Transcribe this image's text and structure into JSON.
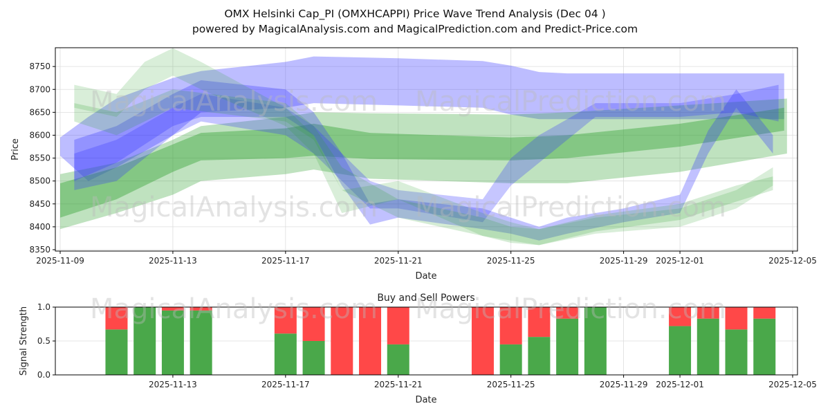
{
  "title_line1": "OMX Helsinki Cap_PI (OMXHCAPPI) Price Wave Trend Analysis (Dec 04 )",
  "title_line2": "powered by MagicalAnalysis.com and MagicalPrediction.com and Predict-Price.com",
  "watermarks": [
    "MagicalAnalysis.com",
    "MagicalPrediction.com"
  ],
  "colors": {
    "blue": "#3333ff",
    "green": "#2ca02c",
    "buy": "#4aa84a",
    "sell": "#ff4848"
  },
  "chart_data": [
    {
      "type": "area",
      "title": "",
      "xlabel": "Date",
      "ylabel": "Price",
      "ylim": [
        8347,
        8791
      ],
      "xlim_days_from_2025_11_09": [
        -0.2,
        26.2
      ],
      "yticks": [
        "8350",
        "8400",
        "8450",
        "8500",
        "8550",
        "8600",
        "8650",
        "8700",
        "8750"
      ],
      "ytick_values": [
        8350,
        8400,
        8450,
        8500,
        8550,
        8600,
        8650,
        8700,
        8750
      ],
      "xticks": [
        "2025-11-09",
        "2025-11-13",
        "2025-11-17",
        "2025-11-21",
        "2025-11-25",
        "2025-11-29",
        "2025-12-01",
        "2025-12-05"
      ],
      "xtick_days": [
        0,
        4,
        8,
        12,
        16,
        20,
        22,
        26
      ],
      "bands": [
        {
          "color": "blue",
          "opacity": 0.32,
          "pts": [
            [
              0,
              8595,
              8555
            ],
            [
              1,
              8640,
              8500
            ],
            [
              2,
              8680,
              8530
            ],
            [
              4,
              8725,
              8600
            ],
            [
              5,
              8740,
              8650
            ],
            [
              8,
              8760,
              8660
            ],
            [
              9,
              8772,
              8670
            ],
            [
              12,
              8768,
              8665
            ],
            [
              15,
              8762,
              8660
            ],
            [
              16,
              8752,
              8645
            ],
            [
              17,
              8738,
              8635
            ],
            [
              18,
              8735,
              8635
            ],
            [
              25.7,
              8735,
              8635
            ]
          ]
        },
        {
          "color": "green",
          "opacity": 0.3,
          "pts": [
            [
              0,
              8515,
              8395
            ],
            [
              2,
              8540,
              8430
            ],
            [
              4,
              8590,
              8470
            ],
            [
              5,
              8620,
              8500
            ],
            [
              8,
              8640,
              8515
            ],
            [
              9,
              8650,
              8525
            ],
            [
              11,
              8648,
              8505
            ],
            [
              16,
              8645,
              8495
            ],
            [
              18,
              8650,
              8495
            ],
            [
              22,
              8665,
              8520
            ],
            [
              25.8,
              8680,
              8560
            ]
          ]
        },
        {
          "color": "green",
          "opacity": 0.4,
          "pts": [
            [
              0,
              8495,
              8420
            ],
            [
              2,
              8530,
              8460
            ],
            [
              4,
              8580,
              8520
            ],
            [
              5,
              8605,
              8545
            ],
            [
              8,
              8615,
              8550
            ],
            [
              9,
              8625,
              8555
            ],
            [
              11,
              8605,
              8548
            ],
            [
              16,
              8595,
              8545
            ],
            [
              18,
              8600,
              8550
            ],
            [
              22,
              8625,
              8575
            ],
            [
              25.7,
              8660,
              8610
            ]
          ]
        },
        {
          "color": "blue",
          "opacity": 0.3,
          "pts": [
            [
              0.5,
              8590,
              8500
            ],
            [
              2,
              8620,
              8540
            ],
            [
              4,
              8690,
              8620
            ],
            [
              5,
              8720,
              8640
            ],
            [
              8,
              8700,
              8640
            ],
            [
              9,
              8650,
              8600
            ],
            [
              10,
              8560,
              8490
            ],
            [
              11,
              8450,
              8405
            ],
            [
              12,
              8460,
              8420
            ],
            [
              15,
              8440,
              8395
            ],
            [
              16,
              8420,
              8385
            ],
            [
              17,
              8400,
              8370
            ],
            [
              18,
              8420,
              8385
            ],
            [
              20,
              8440,
              8410
            ],
            [
              22,
              8470,
              8430
            ],
            [
              23,
              8610,
              8560
            ],
            [
              24,
              8700,
              8660
            ],
            [
              25.3,
              8600,
              8560
            ]
          ]
        },
        {
          "color": "blue",
          "opacity": 0.28,
          "pts": [
            [
              0.5,
              8560,
              8480
            ],
            [
              2,
              8590,
              8500
            ],
            [
              4,
              8660,
              8600
            ],
            [
              5,
              8690,
              8630
            ],
            [
              8,
              8660,
              8600
            ],
            [
              9,
              8620,
              8560
            ],
            [
              11,
              8500,
              8440
            ],
            [
              12,
              8480,
              8440
            ],
            [
              15,
              8460,
              8410
            ],
            [
              16,
              8550,
              8490
            ],
            [
              17,
              8600,
              8540
            ],
            [
              19,
              8670,
              8640
            ],
            [
              22,
              8670,
              8640
            ],
            [
              24,
              8690,
              8650
            ],
            [
              25.5,
              8710,
              8630
            ]
          ]
        },
        {
          "color": "green",
          "opacity": 0.18,
          "pts": [
            [
              0.5,
              8710,
              8660
            ],
            [
              2,
              8690,
              8640
            ],
            [
              3,
              8760,
              8700
            ],
            [
              4,
              8790,
              8730
            ],
            [
              5,
              8760,
              8700
            ],
            [
              8,
              8660,
              8620
            ],
            [
              9,
              8600,
              8560
            ],
            [
              10,
              8480,
              8430
            ],
            [
              12,
              8500,
              8460
            ],
            [
              15,
              8430,
              8380
            ],
            [
              16,
              8410,
              8370
            ],
            [
              17,
              8395,
              8360
            ],
            [
              19,
              8420,
              8385
            ],
            [
              22,
              8440,
              8400
            ],
            [
              24,
              8480,
              8440
            ],
            [
              25.3,
              8530,
              8490
            ]
          ]
        },
        {
          "color": "green",
          "opacity": 0.2,
          "pts": [
            [
              0.5,
              8670,
              8630
            ],
            [
              2,
              8650,
              8600
            ],
            [
              4,
              8700,
              8660
            ],
            [
              8,
              8670,
              8630
            ],
            [
              9,
              8620,
              8590
            ],
            [
              10,
              8530,
              8480
            ],
            [
              12,
              8460,
              8420
            ],
            [
              15,
              8420,
              8380
            ],
            [
              16,
              8400,
              8365
            ],
            [
              17,
              8395,
              8360
            ],
            [
              19,
              8425,
              8390
            ],
            [
              22,
              8450,
              8415
            ],
            [
              24,
              8490,
              8455
            ],
            [
              25.3,
              8510,
              8480
            ]
          ]
        }
      ]
    },
    {
      "type": "bar",
      "title": "Buy and Sell Powers",
      "xlabel": "Date",
      "ylabel": "Signal Strength",
      "ylim": [
        0,
        1
      ],
      "yticks": [
        "0.0",
        "0.5",
        "1.0"
      ],
      "ytick_values": [
        0,
        0.5,
        1
      ],
      "xticks": [
        "2025-11-13",
        "2025-11-17",
        "2025-11-21",
        "2025-11-25",
        "2025-11-29",
        "2025-12-01",
        "2025-12-05"
      ],
      "xtick_days": [
        4,
        8,
        12,
        16,
        20,
        22,
        26
      ],
      "categories": [
        "2025-11-11",
        "2025-11-12",
        "2025-11-13",
        "2025-11-14",
        "2025-11-17",
        "2025-11-18",
        "2025-11-19",
        "2025-11-20",
        "2025-11-21",
        "2025-11-24",
        "2025-11-25",
        "2025-11-26",
        "2025-11-27",
        "2025-11-28",
        "2025-12-01",
        "2025-12-02",
        "2025-12-03",
        "2025-12-04"
      ],
      "days": [
        2,
        3,
        4,
        5,
        8,
        9,
        10,
        11,
        12,
        15,
        16,
        17,
        18,
        19,
        22,
        23,
        24,
        25
      ],
      "series": [
        {
          "name": "Buy",
          "values": [
            0.67,
            1.0,
            0.95,
            0.95,
            0.61,
            0.5,
            0,
            0,
            0.45,
            0,
            0.45,
            0.56,
            0.83,
            1.0,
            0.72,
            0.83,
            0.67,
            0.83
          ]
        },
        {
          "name": "Sell",
          "values": [
            0.33,
            0,
            0.05,
            0.05,
            0.39,
            0.5,
            1,
            1,
            0.55,
            1,
            0.55,
            0.44,
            0.17,
            0,
            0.28,
            0.17,
            0.33,
            0.17
          ]
        }
      ]
    }
  ]
}
